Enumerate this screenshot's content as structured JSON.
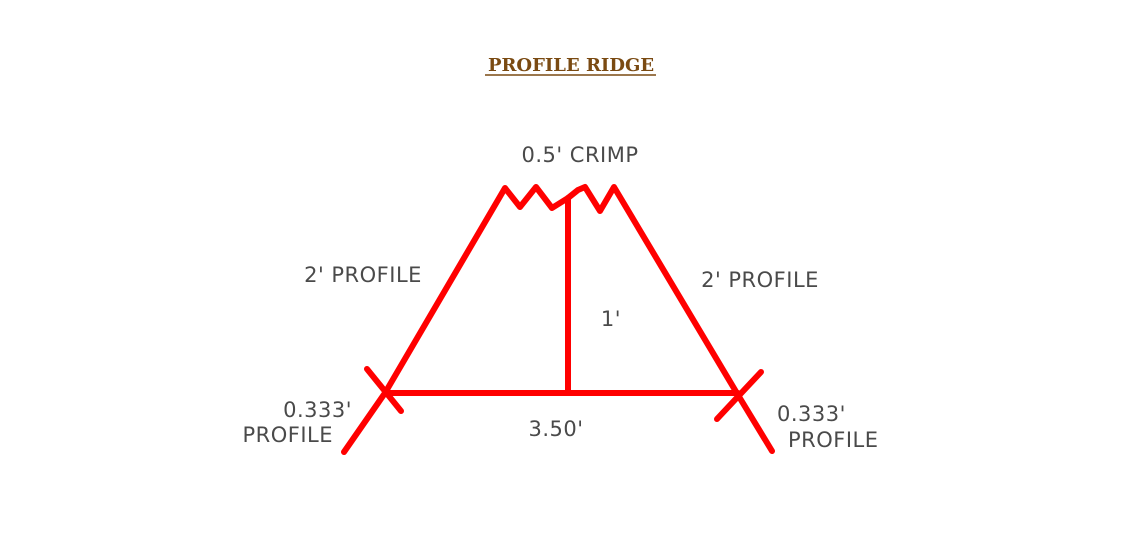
{
  "title": "PROFILE RIDGE",
  "labels": {
    "crimp": "0.5' CRIMP",
    "left_slope": "2' PROFILE",
    "right_slope": "2' PROFILE",
    "height": "1'",
    "base": "3.50'",
    "left_end_value": "0.333'",
    "left_end_word": "PROFILE",
    "right_end_value": "0.333'",
    "right_end_word": "PROFILE"
  },
  "colors": {
    "line": "#ff0000",
    "title": "#7a4a12",
    "text": "#4a4a4a"
  }
}
